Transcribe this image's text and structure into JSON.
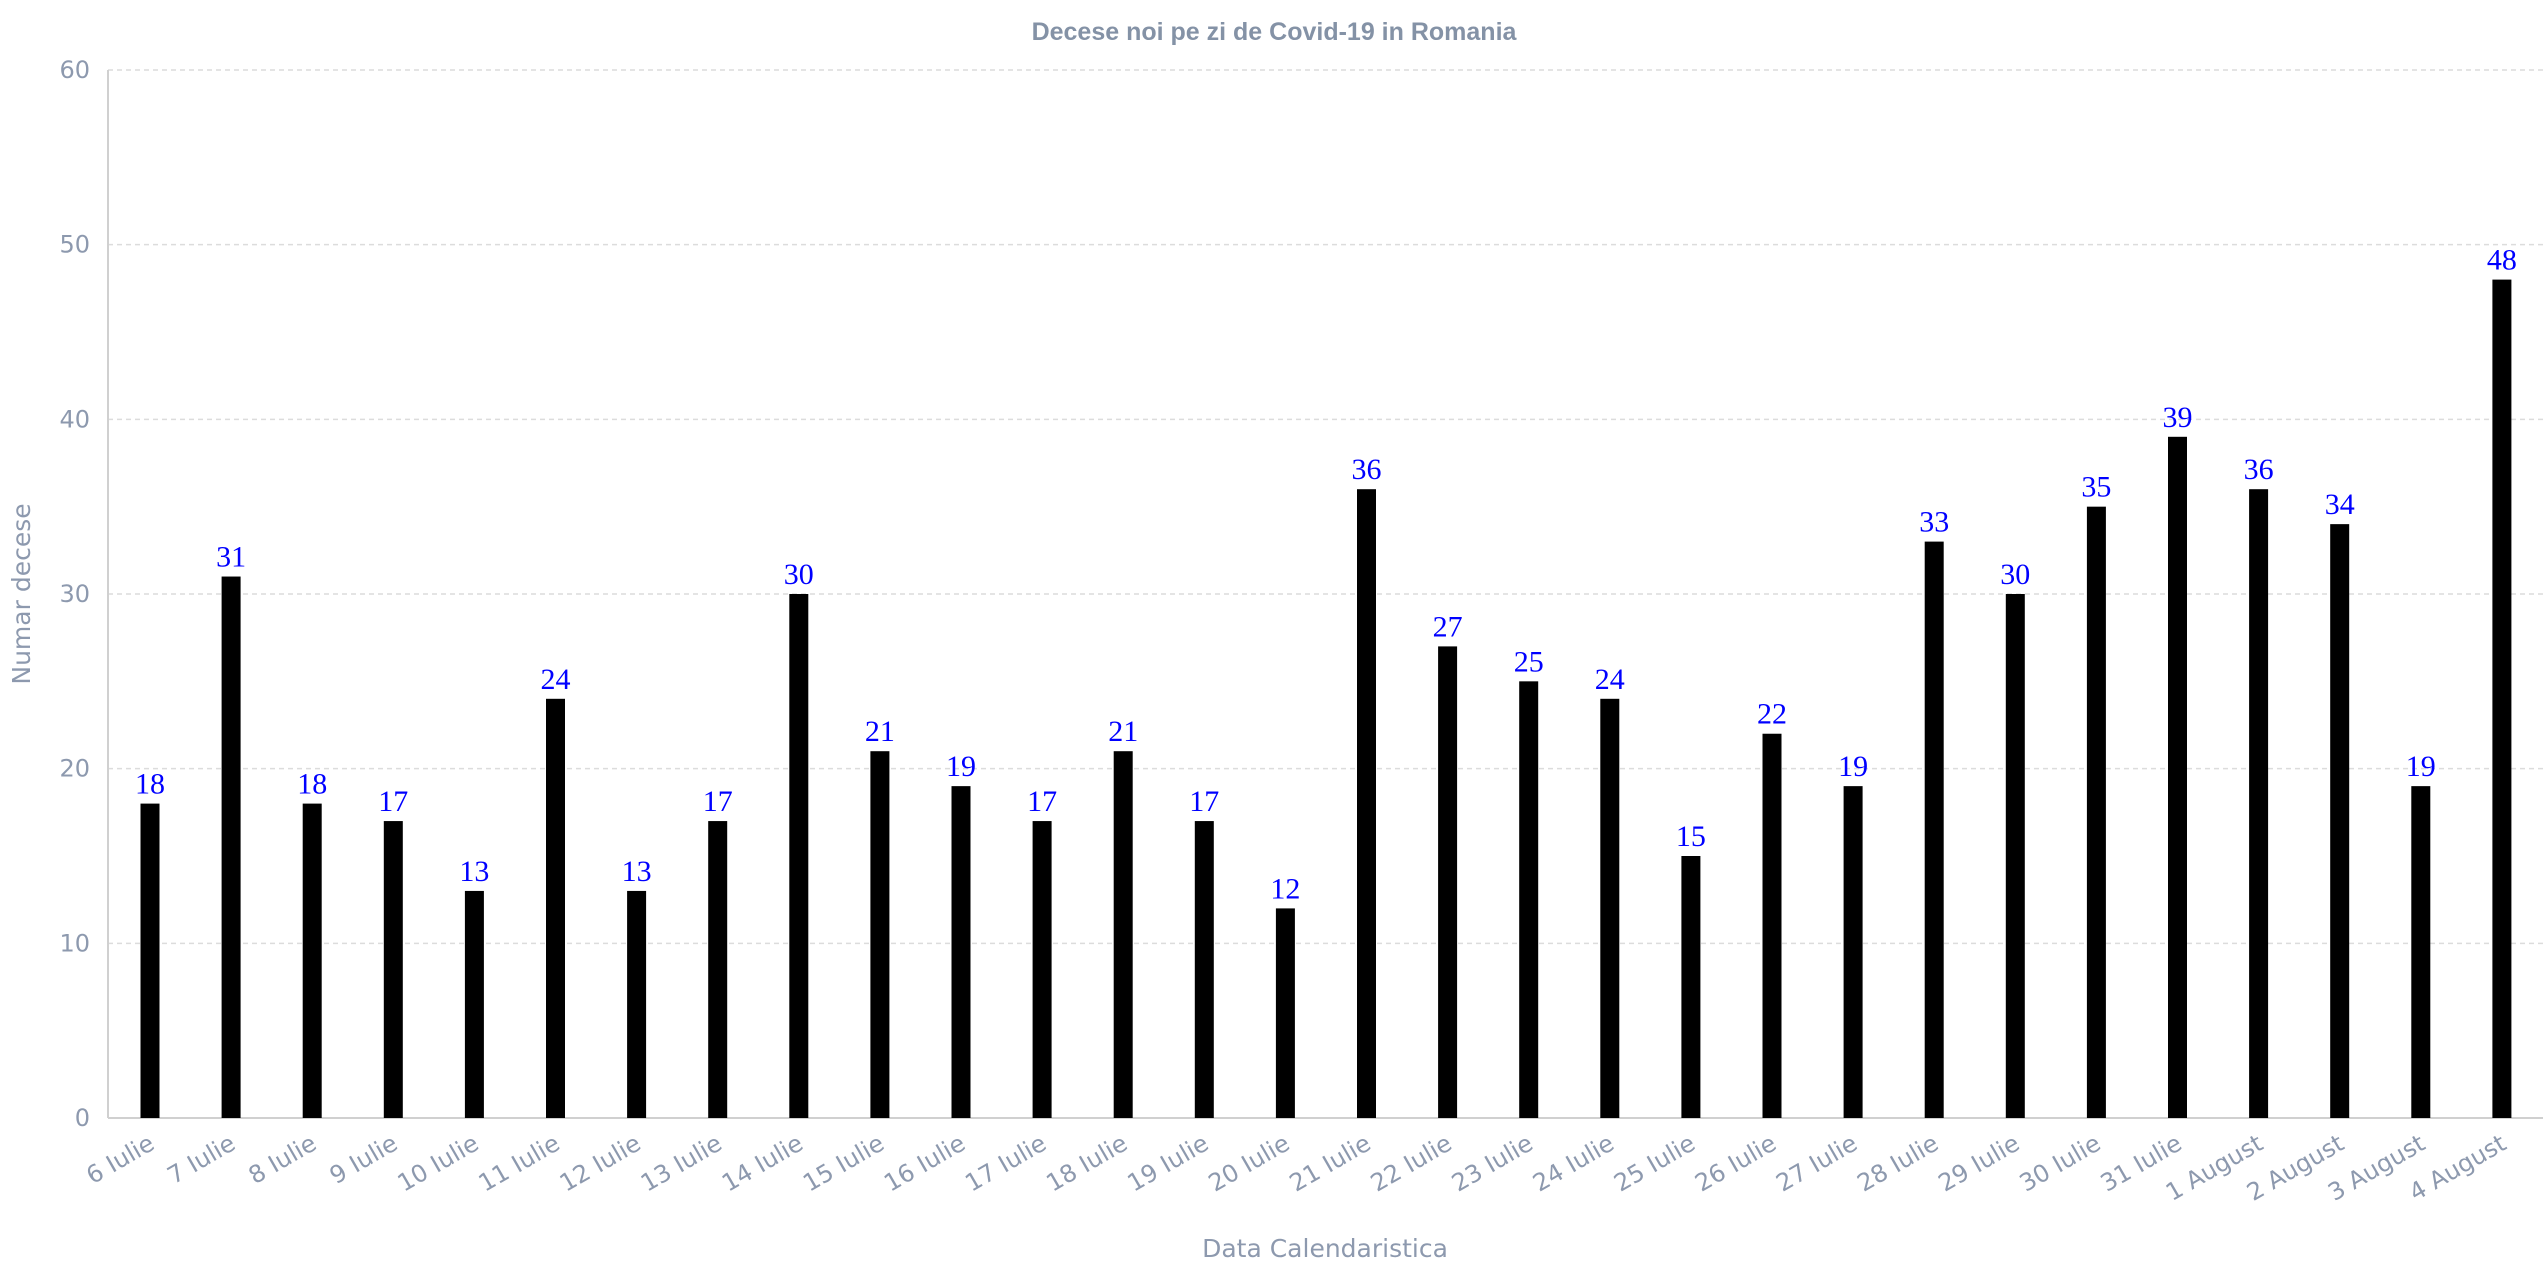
{
  "chart_data": {
    "type": "bar",
    "title": "Decese noi pe zi de Covid-19 in Romania",
    "xlabel": "Data Calendaristica",
    "ylabel": "Numar decese",
    "ylim": [
      0,
      60
    ],
    "yticks": [
      0,
      10,
      20,
      30,
      40,
      50,
      60
    ],
    "grid": true,
    "bar_color": "#000000",
    "label_color": "#0000ff",
    "categories": [
      "6 Iulie",
      "7 Iulie",
      "8 Iulie",
      "9 Iulie",
      "10 Iulie",
      "11 Iulie",
      "12 Iulie",
      "13 Iulie",
      "14 Iulie",
      "15 Iulie",
      "16 Iulie",
      "17 Iulie",
      "18 Iulie",
      "19 Iulie",
      "20 Iulie",
      "21 Iulie",
      "22 Iulie",
      "23 Iulie",
      "24 Iulie",
      "25 Iulie",
      "26 Iulie",
      "27 Iulie",
      "28 Iulie",
      "29 Iulie",
      "30 Iulie",
      "31 Iulie",
      "1 August",
      "2 August",
      "3 August",
      "4 August"
    ],
    "values": [
      18,
      31,
      18,
      17,
      13,
      24,
      13,
      17,
      30,
      21,
      19,
      17,
      21,
      17,
      12,
      36,
      27,
      25,
      24,
      15,
      22,
      19,
      33,
      30,
      35,
      39,
      36,
      34,
      19,
      48
    ]
  }
}
